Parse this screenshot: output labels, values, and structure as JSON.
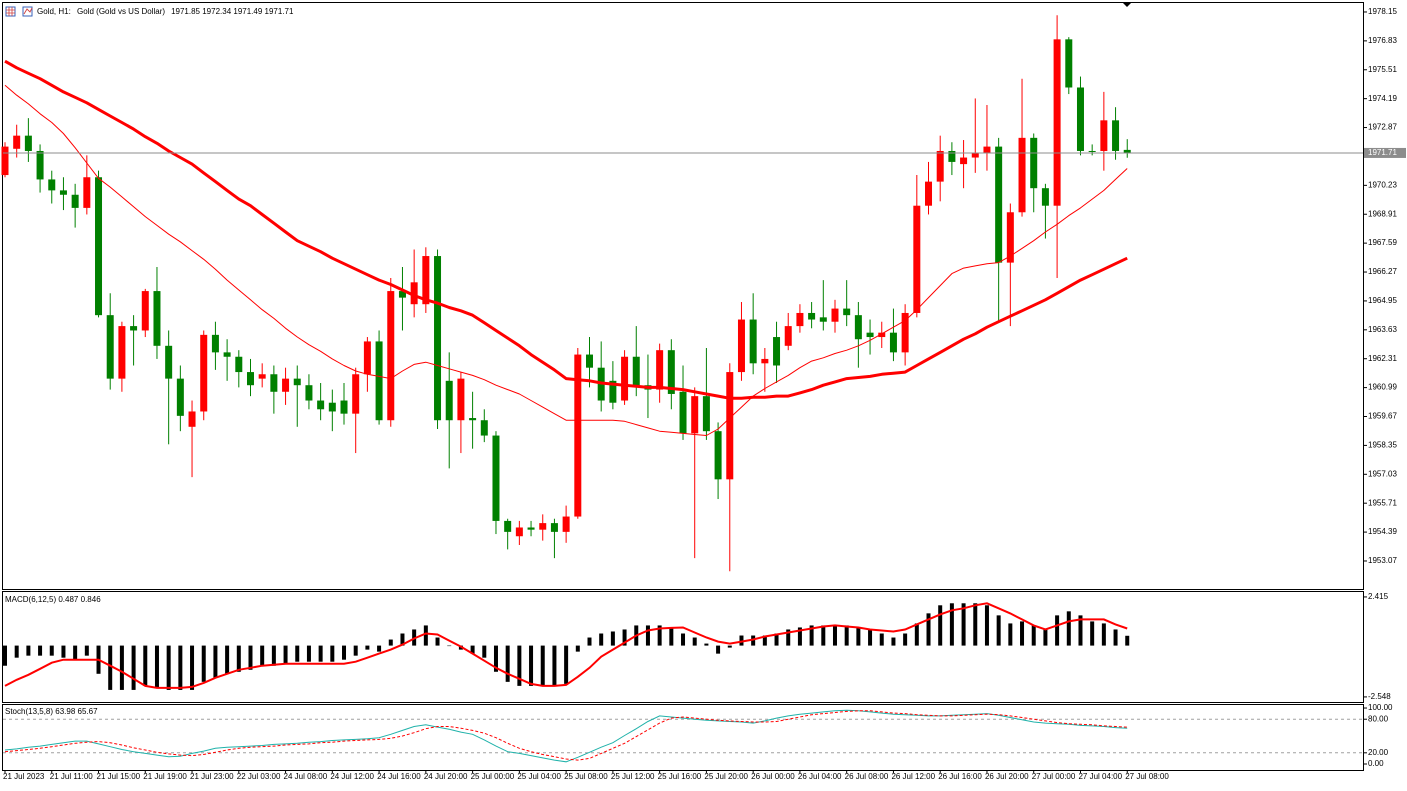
{
  "chart_data": [
    {
      "type": "candlestick",
      "symbol": "Gold, H1:",
      "title": "Gold (Gold vs US Dollar)",
      "categories": [
        "21 Jul 2023",
        null,
        null,
        null,
        "21 Jul 11:00",
        null,
        null,
        null,
        "21 Jul 15:00",
        null,
        null,
        null,
        "21 Jul 19:00",
        null,
        null,
        null,
        "21 Jul 23:00",
        null,
        null,
        null,
        "22 Jul 03:00",
        null,
        null,
        null,
        "24 Jul 08:00",
        null,
        null,
        null,
        "24 Jul 12:00",
        null,
        null,
        null,
        "24 Jul 16:00",
        null,
        null,
        null,
        "24 Jul 20:00",
        null,
        null,
        null,
        "25 Jul 00:00",
        null,
        null,
        null,
        "25 Jul 04:00",
        null,
        null,
        null,
        "25 Jul 08:00",
        null,
        null,
        null,
        "25 Jul 12:00",
        null,
        null,
        null,
        "25 Jul 16:00",
        null,
        null,
        null,
        "25 Jul 20:00",
        null,
        null,
        null,
        "26 Jul 00:00",
        null,
        null,
        null,
        "26 Jul 04:00",
        null,
        null,
        null,
        "26 Jul 08:00",
        null,
        null,
        null,
        "26 Jul 12:00",
        null,
        null,
        null,
        "26 Jul 16:00",
        null,
        null,
        null,
        "26 Jul 20:00",
        null,
        null,
        null,
        "27 Jul 00:00",
        null,
        null,
        null,
        "27 Jul 04:00",
        null,
        null,
        null,
        "27 Jul 08:00"
      ],
      "open": [
        1970.7,
        1971.9,
        1972.5,
        1971.8,
        1970.5,
        1970.0,
        1969.8,
        1969.2,
        1970.6,
        1964.3,
        1961.4,
        1963.8,
        1963.6,
        1965.4,
        1962.9,
        1961.4,
        1959.2,
        1959.9,
        1963.4,
        1962.6,
        1962.4,
        1961.7,
        1961.4,
        1961.6,
        1960.8,
        1961.4,
        1961.1,
        1960.4,
        1960.3,
        1960.4,
        1959.8,
        1961.6,
        1963.1,
        1959.5,
        1965.4,
        1964.8,
        1964.8,
        1967.0,
        1961.3,
        1959.5,
        1959.6,
        1959.5,
        1958.8,
        1954.9,
        1954.2,
        1954.6,
        1954.5,
        1954.8,
        1954.4,
        1955.1,
        1962.5,
        1961.9,
        1961.3,
        1960.4,
        1962.4,
        1961.1,
        1960.9,
        1962.7,
        1960.8,
        1958.9,
        1960.6,
        1959.0,
        1956.8,
        1961.7,
        1964.1,
        1962.1,
        1963.3,
        1962.9,
        1963.8,
        1964.4,
        1964.2,
        1964.0,
        1964.6,
        1964.3,
        1963.5,
        1963.3,
        1963.5,
        1962.6,
        1964.4,
        1969.3,
        1970.4,
        1971.8,
        1971.2,
        1971.5,
        1971.7,
        1972.0,
        1966.7,
        1969.0,
        1972.4,
        1970.1,
        1969.3,
        1976.9,
        1974.7,
        1971.8,
        1971.8,
        1973.2,
        1971.85
      ],
      "high": [
        1972.2,
        1973.0,
        1973.3,
        1972.1,
        1970.9,
        1970.6,
        1970.3,
        1971.6,
        1970.9,
        1965.3,
        1964.0,
        1964.3,
        1965.5,
        1966.5,
        1963.6,
        1962.0,
        1960.4,
        1963.6,
        1964.0,
        1963.2,
        1962.7,
        1962.3,
        1962.1,
        1962.0,
        1961.9,
        1962.0,
        1961.6,
        1961.2,
        1960.9,
        1961.2,
        1961.9,
        1963.3,
        1963.6,
        1966.0,
        1966.5,
        1967.3,
        1967.4,
        1967.3,
        1962.6,
        1961.7,
        1960.8,
        1960.0,
        1959.0,
        1955.0,
        1954.9,
        1954.9,
        1955.2,
        1955.0,
        1955.6,
        1962.8,
        1963.3,
        1963.1,
        1962.2,
        1962.7,
        1963.8,
        1962.5,
        1963.0,
        1963.2,
        1962.0,
        1961.0,
        1962.8,
        1959.4,
        1962.1,
        1964.9,
        1965.3,
        1962.8,
        1964.0,
        1964.4,
        1964.8,
        1964.9,
        1965.9,
        1965.0,
        1965.9,
        1964.9,
        1964.1,
        1964.0,
        1964.6,
        1964.8,
        1970.7,
        1971.3,
        1972.5,
        1972.2,
        1972.3,
        1974.2,
        1973.9,
        1972.4,
        1969.4,
        1975.1,
        1972.6,
        1970.3,
        1978.0,
        1977.0,
        1975.2,
        1972.1,
        1974.5,
        1973.8,
        1972.34
      ],
      "low": [
        1970.6,
        1971.5,
        1971.3,
        1969.9,
        1969.4,
        1969.1,
        1968.3,
        1968.9,
        1964.2,
        1960.9,
        1960.8,
        1962.0,
        1963.3,
        1962.3,
        1958.4,
        1959.0,
        1956.9,
        1959.5,
        1961.8,
        1961.3,
        1961.0,
        1960.6,
        1961.0,
        1959.8,
        1960.2,
        1959.2,
        1960.0,
        1959.5,
        1959.0,
        1959.3,
        1958.0,
        1960.8,
        1959.3,
        1959.2,
        1963.6,
        1964.2,
        1964.4,
        1959.1,
        1957.3,
        1958.0,
        1958.2,
        1958.5,
        1954.3,
        1953.6,
        1953.8,
        1954.2,
        1954.0,
        1953.2,
        1953.9,
        1955.0,
        1961.0,
        1959.9,
        1960.0,
        1960.2,
        1960.6,
        1959.6,
        1960.3,
        1960.0,
        1958.6,
        1953.2,
        1958.6,
        1955.9,
        1952.6,
        1961.3,
        1961.6,
        1960.8,
        1961.2,
        1962.7,
        1963.5,
        1963.7,
        1963.6,
        1963.5,
        1963.8,
        1961.9,
        1962.5,
        1962.8,
        1962.2,
        1962.0,
        1964.2,
        1968.9,
        1969.5,
        1970.7,
        1970.1,
        1970.8,
        1970.9,
        1964.0,
        1963.8,
        1968.8,
        1969.0,
        1967.8,
        1966.0,
        1974.4,
        1971.6,
        1971.6,
        1970.9,
        1971.4,
        1971.49
      ],
      "close": [
        1972.0,
        1972.5,
        1971.8,
        1970.5,
        1970.0,
        1969.8,
        1969.2,
        1970.6,
        1964.3,
        1961.4,
        1963.8,
        1963.6,
        1965.4,
        1962.9,
        1961.4,
        1959.7,
        1959.9,
        1963.4,
        1962.6,
        1962.4,
        1961.7,
        1961.1,
        1961.6,
        1960.8,
        1961.4,
        1961.1,
        1960.4,
        1960.0,
        1959.9,
        1959.8,
        1961.6,
        1963.1,
        1959.5,
        1965.4,
        1965.1,
        1965.8,
        1967.0,
        1959.5,
        1959.5,
        1961.4,
        1959.5,
        1958.8,
        1954.9,
        1954.4,
        1954.6,
        1954.5,
        1954.8,
        1954.4,
        1955.1,
        1962.5,
        1961.9,
        1960.4,
        1960.3,
        1962.4,
        1961.0,
        1960.9,
        1962.7,
        1960.7,
        1958.9,
        1960.6,
        1959.0,
        1956.8,
        1961.7,
        1964.1,
        1962.1,
        1962.3,
        1962.0,
        1963.8,
        1964.4,
        1964.1,
        1964.0,
        1964.6,
        1964.3,
        1963.2,
        1963.3,
        1963.5,
        1962.6,
        1964.4,
        1969.3,
        1970.4,
        1971.8,
        1971.3,
        1971.5,
        1971.7,
        1972.0,
        1966.7,
        1969.0,
        1972.4,
        1970.1,
        1969.3,
        1976.9,
        1974.7,
        1971.8,
        1971.8,
        1973.2,
        1971.8,
        1971.71
      ],
      "up_color": "#ff0000",
      "down_color": "#008000",
      "lines": [
        {
          "color": "#ff0000",
          "width": 1,
          "values": [
            1974.8,
            1974.35,
            1973.95,
            1973.5,
            1973.1,
            1972.6,
            1971.95,
            1971.25,
            1970.55,
            1970.15,
            1969.7,
            1969.25,
            1968.8,
            1968.4,
            1968.0,
            1967.65,
            1967.25,
            1966.85,
            1966.4,
            1965.9,
            1965.45,
            1965.0,
            1964.55,
            1964.15,
            1963.7,
            1963.3,
            1962.95,
            1962.65,
            1962.3,
            1962.0,
            1961.75,
            1961.6,
            1961.5,
            1961.4,
            1961.75,
            1962.05,
            1962.15,
            1962.0,
            1961.85,
            1961.7,
            1961.55,
            1961.35,
            1961.1,
            1960.9,
            1960.7,
            1960.4,
            1960.1,
            1959.8,
            1959.5,
            1959.5,
            1959.5,
            1959.5,
            1959.5,
            1959.45,
            1959.3,
            1959.15,
            1959.0,
            1958.95,
            1958.9,
            1958.85,
            1958.8,
            1959.1,
            1959.6,
            1960.1,
            1960.6,
            1960.95,
            1961.25,
            1961.55,
            1961.9,
            1962.2,
            1962.35,
            1962.55,
            1962.7,
            1962.9,
            1963.15,
            1963.45,
            1963.75,
            1964.05,
            1964.55,
            1965.1,
            1965.65,
            1966.2,
            1966.45,
            1966.55,
            1966.65,
            1966.7,
            1967.0,
            1967.35,
            1967.7,
            1968.1,
            1968.45,
            1968.85,
            1969.2,
            1969.6,
            1970.0,
            1970.5,
            1971.0
          ]
        },
        {
          "color": "#ff0000",
          "width": 3,
          "values": [
            1975.9,
            1975.6,
            1975.35,
            1975.1,
            1974.8,
            1974.5,
            1974.25,
            1974.0,
            1973.7,
            1973.4,
            1973.1,
            1972.8,
            1972.45,
            1972.15,
            1971.8,
            1971.5,
            1971.2,
            1970.8,
            1970.4,
            1970.0,
            1969.6,
            1969.3,
            1968.9,
            1968.5,
            1968.1,
            1967.7,
            1967.45,
            1967.2,
            1966.9,
            1966.65,
            1966.4,
            1966.15,
            1965.9,
            1965.7,
            1965.45,
            1965.2,
            1965.0,
            1964.85,
            1964.65,
            1964.5,
            1964.3,
            1963.95,
            1963.6,
            1963.25,
            1962.9,
            1962.5,
            1962.15,
            1961.8,
            1961.4,
            1961.35,
            1961.3,
            1961.2,
            1961.15,
            1961.1,
            1961.05,
            1961.0,
            1961.0,
            1960.95,
            1960.9,
            1960.8,
            1960.7,
            1960.6,
            1960.5,
            1960.5,
            1960.55,
            1960.55,
            1960.6,
            1960.6,
            1960.75,
            1960.9,
            1961.1,
            1961.25,
            1961.4,
            1961.45,
            1961.5,
            1961.6,
            1961.65,
            1961.7,
            1962.0,
            1962.3,
            1962.6,
            1962.9,
            1963.2,
            1963.45,
            1963.75,
            1964.0,
            1964.25,
            1964.5,
            1964.75,
            1965.0,
            1965.3,
            1965.6,
            1965.9,
            1966.15,
            1966.4,
            1966.65,
            1966.9
          ]
        }
      ],
      "price_line_color": "#8c8c8c",
      "ylim": [
        1951.79,
        1978.56
      ],
      "yticks": [
        1978.15,
        1976.83,
        1975.51,
        1974.19,
        1972.87,
        1970.23,
        1968.91,
        1967.59,
        1966.27,
        1964.95,
        1963.63,
        1962.31,
        1960.99,
        1959.67,
        1958.35,
        1957.03,
        1955.71,
        1954.39,
        1953.07
      ]
    },
    {
      "type": "macd",
      "title": "MACD(6,12,5)",
      "histogram": [
        -1.0,
        -0.6,
        -0.5,
        -0.5,
        -0.5,
        -0.6,
        -0.7,
        -0.5,
        -1.4,
        -2.2,
        -2.2,
        -2.2,
        -2.0,
        -2.1,
        -2.2,
        -2.2,
        -2.2,
        -1.8,
        -1.6,
        -1.4,
        -1.3,
        -1.2,
        -1.0,
        -1.0,
        -0.9,
        -0.8,
        -0.8,
        -0.8,
        -0.8,
        -0.7,
        -0.5,
        -0.2,
        -0.3,
        0.3,
        0.6,
        0.8,
        1.0,
        0.4,
        0.0,
        -0.2,
        -0.4,
        -0.6,
        -1.3,
        -1.8,
        -2.0,
        -2.0,
        -2.0,
        -2.0,
        -1.9,
        -0.3,
        0.4,
        0.6,
        0.7,
        0.8,
        1.0,
        1.0,
        1.0,
        0.9,
        0.6,
        0.4,
        0.1,
        -0.4,
        -0.1,
        0.5,
        0.5,
        0.5,
        0.6,
        0.8,
        0.9,
        1.0,
        1.0,
        1.0,
        1.0,
        0.9,
        0.8,
        0.6,
        0.4,
        0.6,
        1.1,
        1.6,
        2.0,
        2.1,
        2.1,
        2.1,
        2.0,
        1.5,
        1.1,
        1.2,
        1.0,
        0.8,
        1.5,
        1.7,
        1.5,
        1.2,
        1.1,
        0.8,
        0.487
      ],
      "signal": [
        -2.0,
        -1.7,
        -1.45,
        -1.15,
        -0.85,
        -0.7,
        -0.7,
        -0.7,
        -0.7,
        -1.0,
        -1.3,
        -1.65,
        -2.0,
        -2.1,
        -2.1,
        -2.1,
        -2.05,
        -1.85,
        -1.6,
        -1.4,
        -1.2,
        -1.1,
        -1.0,
        -0.95,
        -0.9,
        -0.9,
        -0.9,
        -0.9,
        -0.9,
        -0.9,
        -0.8,
        -0.6,
        -0.4,
        -0.2,
        0.05,
        0.35,
        0.6,
        0.55,
        0.25,
        -0.05,
        -0.4,
        -0.75,
        -1.1,
        -1.4,
        -1.65,
        -1.9,
        -2.0,
        -2.0,
        -1.95,
        -1.55,
        -1.1,
        -0.55,
        -0.2,
        0.15,
        0.5,
        0.75,
        0.85,
        0.88,
        0.9,
        0.65,
        0.4,
        0.2,
        0.1,
        0.2,
        0.3,
        0.45,
        0.55,
        0.65,
        0.75,
        0.85,
        0.95,
        1.0,
        0.95,
        0.9,
        0.8,
        0.75,
        0.7,
        0.8,
        1.05,
        1.3,
        1.55,
        1.75,
        1.85,
        2.0,
        2.1,
        1.85,
        1.6,
        1.3,
        1.0,
        0.8,
        1.0,
        1.2,
        1.3,
        1.3,
        1.3,
        1.05,
        0.846
      ],
      "histogram_color": "#000000",
      "signal_color": "#ff0000",
      "ylim": [
        -2.8,
        2.66
      ],
      "yticks": [
        2.415,
        -2.548
      ]
    },
    {
      "type": "stochastic",
      "title": "Stoch(13,5,8)",
      "main": [
        25,
        27,
        30,
        32,
        35,
        38,
        41,
        41,
        36,
        31,
        26,
        22,
        19,
        16,
        13,
        14,
        19,
        23,
        28,
        30,
        31,
        32,
        33,
        35,
        36,
        37,
        39,
        40,
        42,
        43,
        44,
        45,
        47,
        53,
        60,
        67,
        70,
        66,
        62,
        57,
        53,
        43,
        32,
        22,
        19,
        15,
        11,
        7,
        4,
        12,
        21,
        30,
        38,
        51,
        63,
        76,
        86,
        84,
        82,
        80,
        78,
        77,
        76,
        75,
        73,
        77,
        82,
        86,
        89,
        91,
        93,
        95,
        96,
        95,
        93,
        91,
        89,
        88,
        87,
        86,
        86,
        87,
        88,
        89,
        90,
        87,
        83,
        79,
        75,
        73,
        72,
        71,
        69,
        68,
        67,
        65,
        63.98
      ],
      "signal": [
        22,
        24,
        26,
        28,
        31,
        34,
        37,
        39,
        40,
        38,
        34,
        29,
        25,
        21,
        18,
        16,
        15,
        17,
        21,
        25,
        28,
        30,
        31,
        32,
        34,
        35,
        36,
        38,
        39,
        41,
        42,
        43,
        44,
        46,
        50,
        56,
        63,
        67,
        67,
        64,
        60,
        55,
        47,
        37,
        28,
        22,
        17,
        13,
        9,
        7,
        10,
        19,
        28,
        37,
        49,
        61,
        73,
        82,
        84,
        82,
        80,
        78,
        77,
        76,
        75,
        75,
        76,
        80,
        84,
        88,
        90,
        92,
        94,
        95,
        95,
        93,
        91,
        90,
        88,
        87,
        86,
        86,
        87,
        88,
        89,
        88,
        86,
        83,
        80,
        77,
        74,
        72,
        71,
        70,
        68,
        67,
        65.67
      ],
      "main_color": "#20b2aa",
      "signal_color": "#ff0000",
      "levels": [
        80,
        20
      ],
      "ylim": [
        -10.7,
        105.4
      ],
      "yticks": [
        {
          "value": 100,
          "label": "100.00"
        },
        {
          "value": 80,
          "label": "80.00"
        },
        {
          "value": 20,
          "label": "20.00"
        },
        {
          "value": 0,
          "label": "0.00"
        }
      ]
    }
  ]
}
